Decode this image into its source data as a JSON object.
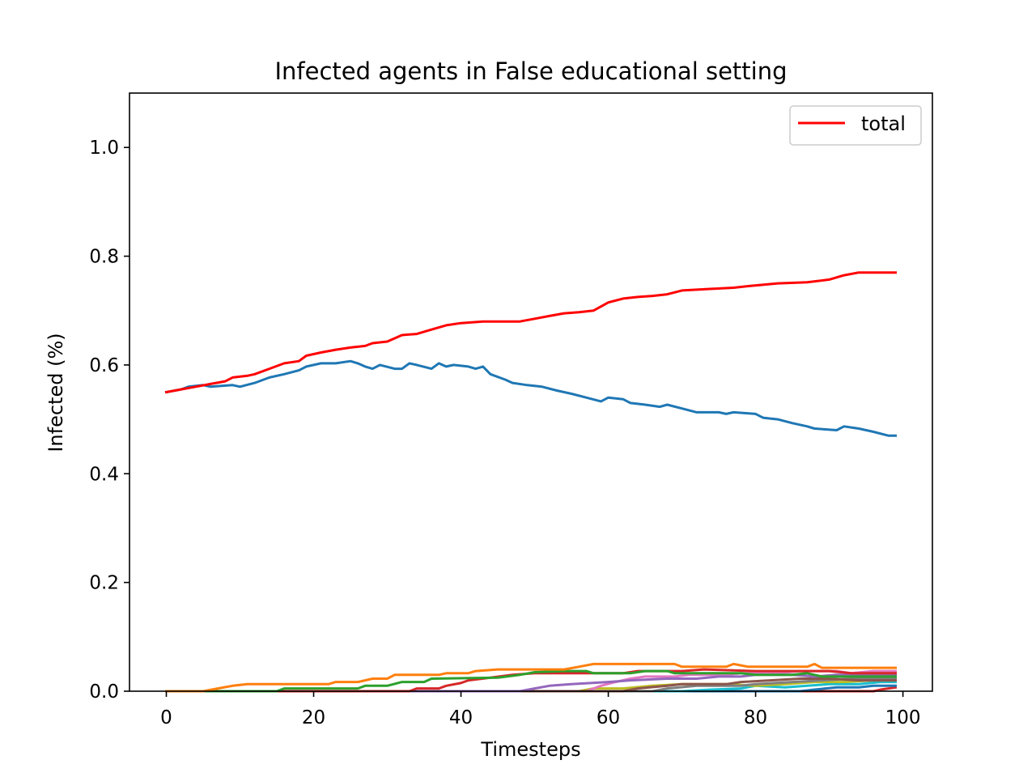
{
  "chart_data": {
    "type": "line",
    "title": "Infected agents in False educational setting",
    "xlabel": "Timesteps",
    "ylabel": "Infected (%)",
    "xlim": [
      -5,
      104
    ],
    "ylim": [
      0,
      1.1
    ],
    "xticks": [
      0,
      20,
      40,
      60,
      80,
      100
    ],
    "xtick_labels": [
      "0",
      "20",
      "40",
      "60",
      "80",
      "100"
    ],
    "yticks": [
      0,
      0.2,
      0.4,
      0.6,
      0.8,
      1.0
    ],
    "ytick_labels": [
      "0.0",
      "0.2",
      "0.4",
      "0.6",
      "0.8",
      "1.0"
    ],
    "grid": false,
    "legend": {
      "position": "top-right",
      "entries": [
        {
          "label": "total",
          "color": "#ff0000"
        }
      ]
    },
    "series": [
      {
        "name": "total",
        "color": "#ff0000",
        "points": [
          [
            0,
            0.55
          ],
          [
            2,
            0.555
          ],
          [
            4,
            0.56
          ],
          [
            6,
            0.565
          ],
          [
            8,
            0.57
          ],
          [
            9,
            0.577
          ],
          [
            11,
            0.58
          ],
          [
            12,
            0.583
          ],
          [
            14,
            0.593
          ],
          [
            16,
            0.603
          ],
          [
            18,
            0.607
          ],
          [
            19,
            0.617
          ],
          [
            21,
            0.623
          ],
          [
            23,
            0.628
          ],
          [
            25,
            0.632
          ],
          [
            27,
            0.635
          ],
          [
            28,
            0.64
          ],
          [
            30,
            0.643
          ],
          [
            32,
            0.655
          ],
          [
            34,
            0.657
          ],
          [
            36,
            0.665
          ],
          [
            38,
            0.673
          ],
          [
            40,
            0.677
          ],
          [
            43,
            0.68
          ],
          [
            48,
            0.68
          ],
          [
            50,
            0.685
          ],
          [
            52,
            0.69
          ],
          [
            54,
            0.695
          ],
          [
            56,
            0.697
          ],
          [
            58,
            0.7
          ],
          [
            60,
            0.715
          ],
          [
            62,
            0.722
          ],
          [
            64,
            0.725
          ],
          [
            66,
            0.727
          ],
          [
            68,
            0.73
          ],
          [
            70,
            0.737
          ],
          [
            74,
            0.74
          ],
          [
            77,
            0.742
          ],
          [
            79,
            0.745
          ],
          [
            83,
            0.75
          ],
          [
            87,
            0.752
          ],
          [
            90,
            0.757
          ],
          [
            92,
            0.765
          ],
          [
            94,
            0.77
          ],
          [
            99,
            0.77
          ]
        ]
      },
      {
        "name": "",
        "color": "#1f77b4",
        "points": [
          [
            0,
            0.55
          ],
          [
            2,
            0.555
          ],
          [
            3,
            0.56
          ],
          [
            5,
            0.563
          ],
          [
            6,
            0.56
          ],
          [
            9,
            0.563
          ],
          [
            10,
            0.56
          ],
          [
            12,
            0.567
          ],
          [
            14,
            0.577
          ],
          [
            16,
            0.583
          ],
          [
            18,
            0.59
          ],
          [
            19,
            0.597
          ],
          [
            21,
            0.603
          ],
          [
            23,
            0.603
          ],
          [
            25,
            0.607
          ],
          [
            26,
            0.603
          ],
          [
            27,
            0.597
          ],
          [
            28,
            0.593
          ],
          [
            29,
            0.6
          ],
          [
            31,
            0.593
          ],
          [
            32,
            0.593
          ],
          [
            33,
            0.603
          ],
          [
            34,
            0.6
          ],
          [
            36,
            0.593
          ],
          [
            37,
            0.603
          ],
          [
            38,
            0.597
          ],
          [
            39,
            0.6
          ],
          [
            41,
            0.597
          ],
          [
            42,
            0.593
          ],
          [
            43,
            0.597
          ],
          [
            44,
            0.583
          ],
          [
            46,
            0.573
          ],
          [
            47,
            0.567
          ],
          [
            49,
            0.563
          ],
          [
            51,
            0.56
          ],
          [
            53,
            0.553
          ],
          [
            55,
            0.547
          ],
          [
            57,
            0.54
          ],
          [
            59,
            0.533
          ],
          [
            60,
            0.54
          ],
          [
            62,
            0.537
          ],
          [
            63,
            0.53
          ],
          [
            65,
            0.527
          ],
          [
            67,
            0.523
          ],
          [
            68,
            0.527
          ],
          [
            70,
            0.52
          ],
          [
            72,
            0.513
          ],
          [
            75,
            0.513
          ],
          [
            76,
            0.51
          ],
          [
            77,
            0.513
          ],
          [
            80,
            0.51
          ],
          [
            81,
            0.503
          ],
          [
            83,
            0.5
          ],
          [
            85,
            0.493
          ],
          [
            87,
            0.487
          ],
          [
            88,
            0.483
          ],
          [
            91,
            0.48
          ],
          [
            92,
            0.487
          ],
          [
            94,
            0.483
          ],
          [
            96,
            0.477
          ],
          [
            98,
            0.47
          ],
          [
            99,
            0.47
          ]
        ]
      },
      {
        "name": "",
        "color": "#ff7f0e",
        "points": [
          [
            0,
            0
          ],
          [
            5,
            0
          ],
          [
            7,
            0.005
          ],
          [
            9,
            0.01
          ],
          [
            11,
            0.013
          ],
          [
            22,
            0.013
          ],
          [
            23,
            0.017
          ],
          [
            26,
            0.017
          ],
          [
            27,
            0.02
          ],
          [
            28,
            0.023
          ],
          [
            30,
            0.023
          ],
          [
            31,
            0.03
          ],
          [
            37,
            0.03
          ],
          [
            38,
            0.033
          ],
          [
            41,
            0.033
          ],
          [
            42,
            0.037
          ],
          [
            45,
            0.04
          ],
          [
            54,
            0.04
          ],
          [
            56,
            0.045
          ],
          [
            58,
            0.05
          ],
          [
            69,
            0.05
          ],
          [
            70,
            0.045
          ],
          [
            76,
            0.045
          ],
          [
            77,
            0.05
          ],
          [
            79,
            0.045
          ],
          [
            87,
            0.045
          ],
          [
            88,
            0.05
          ],
          [
            89,
            0.043
          ],
          [
            99,
            0.043
          ]
        ]
      },
      {
        "name": "",
        "color": "#2ca02c",
        "points": [
          [
            0,
            0
          ],
          [
            15,
            0
          ],
          [
            16,
            0.005
          ],
          [
            26,
            0.005
          ],
          [
            27,
            0.01
          ],
          [
            30,
            0.01
          ],
          [
            32,
            0.017
          ],
          [
            35,
            0.017
          ],
          [
            36,
            0.023
          ],
          [
            45,
            0.025
          ],
          [
            48,
            0.03
          ],
          [
            50,
            0.035
          ],
          [
            54,
            0.037
          ],
          [
            57,
            0.037
          ],
          [
            58,
            0.033
          ],
          [
            63,
            0.033
          ],
          [
            65,
            0.037
          ],
          [
            68,
            0.037
          ],
          [
            69,
            0.033
          ],
          [
            78,
            0.033
          ],
          [
            80,
            0.03
          ],
          [
            85,
            0.03
          ],
          [
            87,
            0.033
          ],
          [
            89,
            0.027
          ],
          [
            99,
            0.027
          ]
        ]
      },
      {
        "name": "",
        "color": "#d62728",
        "points": [
          [
            0,
            0
          ],
          [
            33,
            0
          ],
          [
            34,
            0.005
          ],
          [
            37,
            0.005
          ],
          [
            38,
            0.01
          ],
          [
            40,
            0.015
          ],
          [
            41,
            0.02
          ],
          [
            44,
            0.025
          ],
          [
            47,
            0.03
          ],
          [
            50,
            0.033
          ],
          [
            54,
            0.033
          ],
          [
            62,
            0.033
          ],
          [
            64,
            0.037
          ],
          [
            70,
            0.037
          ],
          [
            73,
            0.04
          ],
          [
            80,
            0.037
          ],
          [
            90,
            0.037
          ],
          [
            93,
            0.033
          ],
          [
            99,
            0.033
          ]
        ]
      },
      {
        "name": "",
        "color": "#9467bd",
        "points": [
          [
            0,
            0
          ],
          [
            48,
            0
          ],
          [
            50,
            0.005
          ],
          [
            52,
            0.01
          ],
          [
            55,
            0.013
          ],
          [
            60,
            0.017
          ],
          [
            63,
            0.02
          ],
          [
            68,
            0.023
          ],
          [
            72,
            0.023
          ],
          [
            75,
            0.027
          ],
          [
            78,
            0.027
          ],
          [
            80,
            0.03
          ],
          [
            85,
            0.03
          ],
          [
            88,
            0.027
          ],
          [
            91,
            0.03
          ],
          [
            99,
            0.03
          ]
        ]
      },
      {
        "name": "",
        "color": "#8c564b",
        "points": [
          [
            0,
            0
          ],
          [
            62,
            0
          ],
          [
            64,
            0.005
          ],
          [
            68,
            0.01
          ],
          [
            70,
            0.013
          ],
          [
            76,
            0.013
          ],
          [
            78,
            0.017
          ],
          [
            82,
            0.02
          ],
          [
            86,
            0.023
          ],
          [
            90,
            0.023
          ],
          [
            94,
            0.02
          ],
          [
            99,
            0.02
          ]
        ]
      },
      {
        "name": "",
        "color": "#e377c2",
        "points": [
          [
            0,
            0
          ],
          [
            57,
            0
          ],
          [
            59,
            0.01
          ],
          [
            61,
            0.017
          ],
          [
            63,
            0.023
          ],
          [
            65,
            0.027
          ],
          [
            69,
            0.027
          ],
          [
            71,
            0.03
          ],
          [
            76,
            0.03
          ],
          [
            78,
            0.033
          ],
          [
            83,
            0.033
          ],
          [
            86,
            0.037
          ],
          [
            91,
            0.037
          ],
          [
            93,
            0.033
          ],
          [
            96,
            0.037
          ],
          [
            99,
            0.037
          ]
        ]
      },
      {
        "name": "",
        "color": "#7f7f7f",
        "points": [
          [
            0,
            0
          ],
          [
            66,
            0
          ],
          [
            68,
            0.005
          ],
          [
            72,
            0.01
          ],
          [
            78,
            0.01
          ],
          [
            80,
            0.013
          ],
          [
            85,
            0.017
          ],
          [
            89,
            0.02
          ],
          [
            93,
            0.023
          ],
          [
            99,
            0.023
          ]
        ]
      },
      {
        "name": "",
        "color": "#bcbd22",
        "points": [
          [
            0,
            0
          ],
          [
            56,
            0
          ],
          [
            58,
            0.005
          ],
          [
            62,
            0.005
          ],
          [
            66,
            0.01
          ],
          [
            70,
            0.013
          ],
          [
            76,
            0.013
          ],
          [
            80,
            0.01
          ],
          [
            84,
            0.013
          ],
          [
            88,
            0.017
          ],
          [
            92,
            0.017
          ],
          [
            96,
            0.02
          ],
          [
            99,
            0.02
          ]
        ]
      },
      {
        "name": "",
        "color": "#17becf",
        "points": [
          [
            0,
            0
          ],
          [
            70,
            0
          ],
          [
            74,
            0.003
          ],
          [
            78,
            0.005
          ],
          [
            80,
            0.01
          ],
          [
            84,
            0.007
          ],
          [
            87,
            0.01
          ],
          [
            90,
            0.013
          ],
          [
            94,
            0.013
          ],
          [
            97,
            0.017
          ],
          [
            99,
            0.017
          ]
        ]
      },
      {
        "name": "",
        "color": "#1f77b4",
        "points": [
          [
            0,
            0
          ],
          [
            86,
            0
          ],
          [
            88,
            0.003
          ],
          [
            91,
            0.007
          ],
          [
            94,
            0.007
          ],
          [
            96,
            0.01
          ],
          [
            99,
            0.01
          ]
        ]
      },
      {
        "name": "",
        "color": "#d62728",
        "points": [
          [
            0,
            0
          ],
          [
            96,
            0
          ],
          [
            97,
            0.003
          ],
          [
            99,
            0.007
          ]
        ]
      }
    ]
  }
}
